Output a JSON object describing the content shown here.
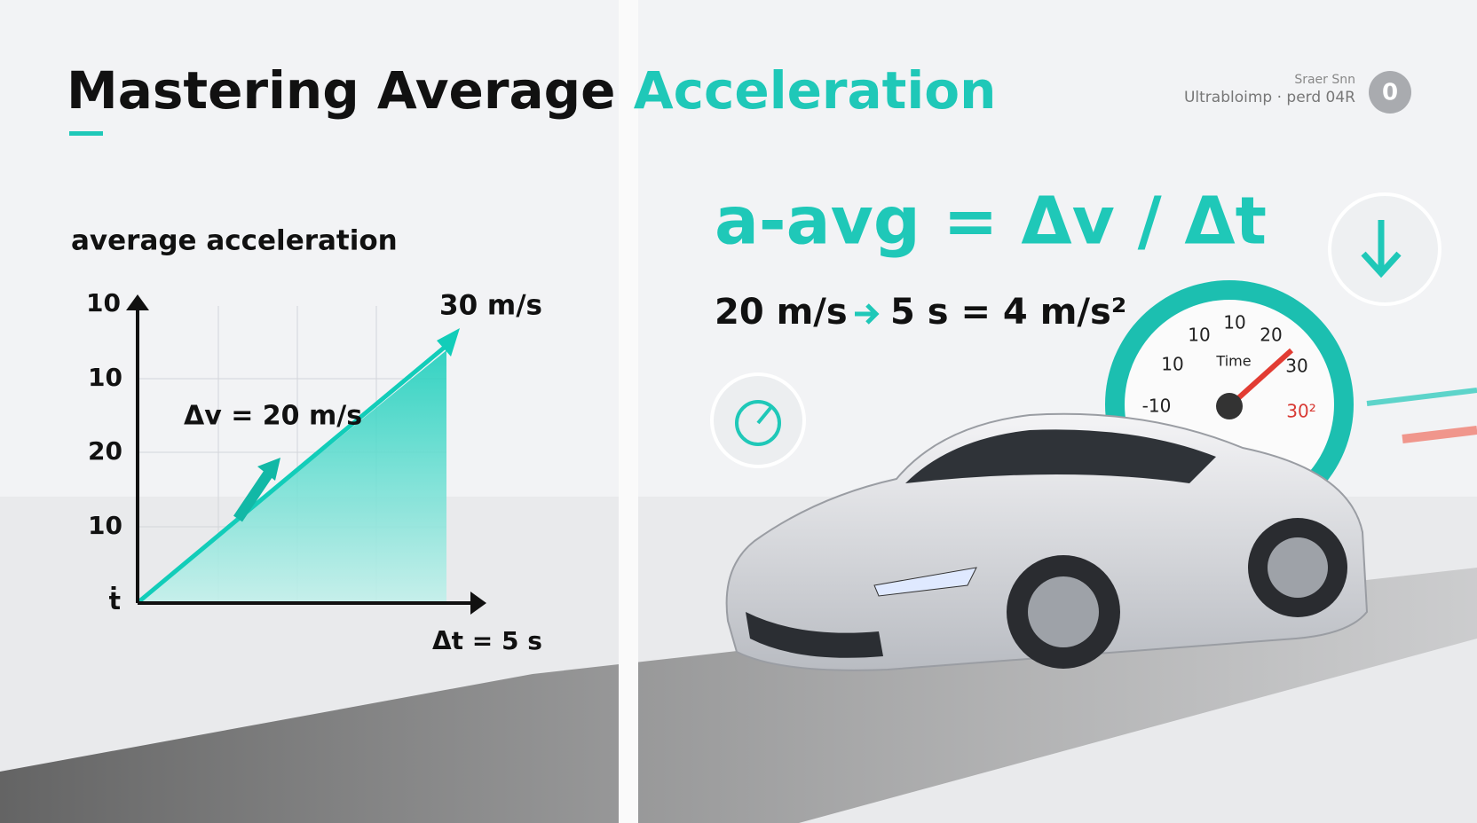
{
  "header": {
    "title_main": "Mastering Average",
    "title_accent": "Acceleration",
    "badge_line1": "Sraer Snn",
    "badge_line2": "Ultrabloimp · perd 04R",
    "badge_icon": "0"
  },
  "graph": {
    "label": "average acceleration",
    "y_labels": [
      "10",
      "10",
      "20",
      "10",
      "ṫ"
    ],
    "top_label": "30 m/s",
    "delta_v": "Δv = 20 m/s",
    "delta_t": "Δt = 5 s"
  },
  "formula": {
    "main": "a-avg = Δv / Δt",
    "example_left": "20 m/s",
    "example_right": "5 s = 4 m/s²"
  },
  "gauge": {
    "labels": [
      "10",
      "10",
      "20",
      "10",
      "30",
      "-10",
      "30²"
    ],
    "center": "Time"
  }
}
